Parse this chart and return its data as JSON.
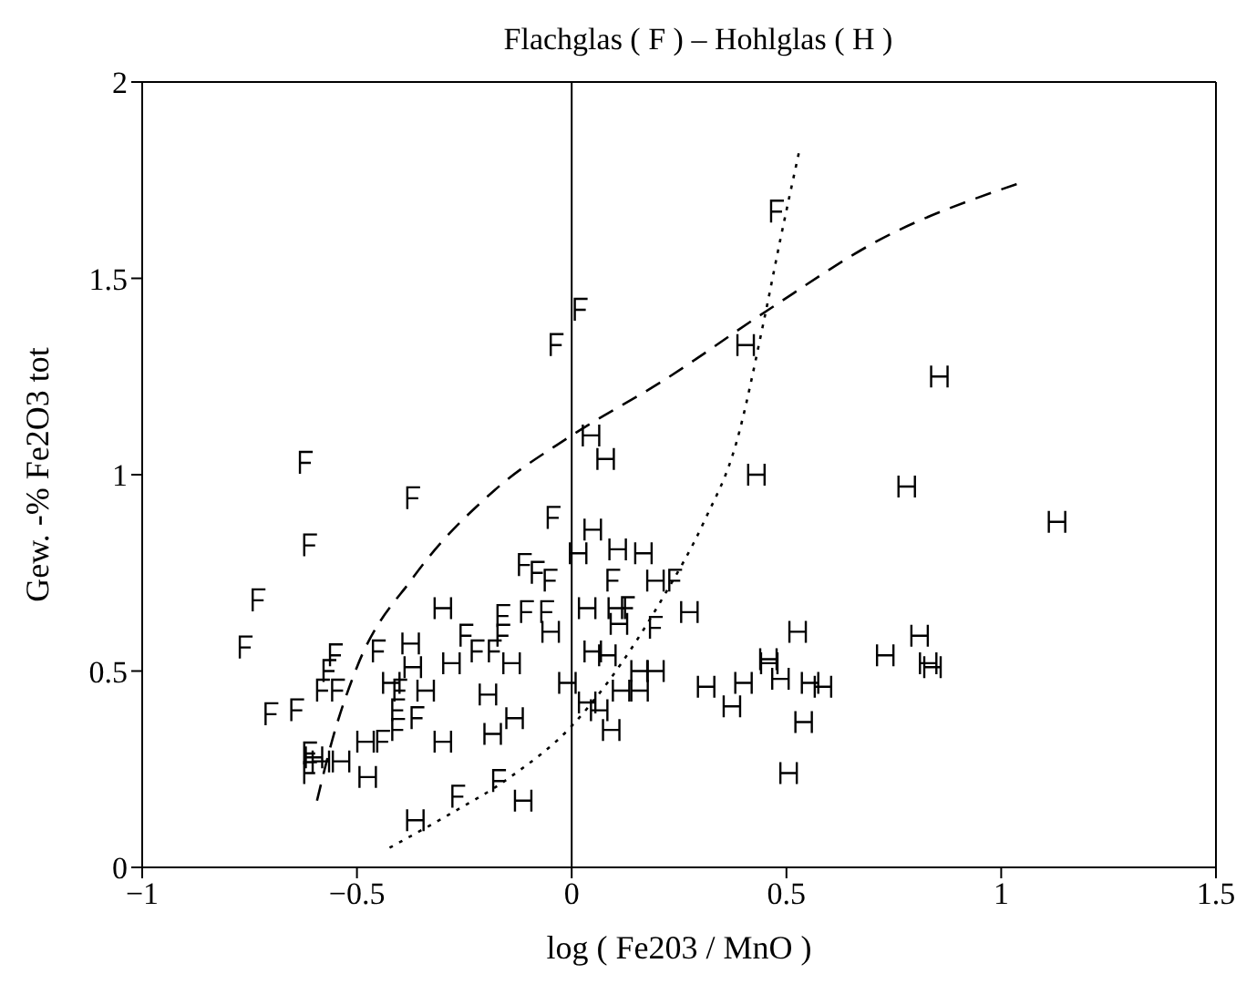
{
  "chart_data": {
    "type": "scatter",
    "title": "Flachglas ( F ) – Hohlglas ( H )",
    "xlabel": "log ( Fe203 / MnO )",
    "ylabel": "Gew. -%  Fe2O3 tot",
    "xlim": [
      -1,
      1.5
    ],
    "xticks": [
      -1,
      -0.5,
      0,
      0.5,
      1,
      1.5
    ],
    "ylim": [
      0,
      2
    ],
    "yticks": [
      0,
      0.5,
      1,
      1.5,
      2
    ],
    "grid": false,
    "legend": false,
    "ref_lines": [
      {
        "axis": "x",
        "value": 0,
        "color": "#000000"
      }
    ],
    "series": [
      {
        "color": "#000000",
        "marker": "cross",
        "x": [
          0.477,
          0.02,
          -0.036,
          -0.62,
          -0.37,
          -0.043,
          -0.61,
          -0.73,
          -0.76,
          -0.11,
          -0.08,
          -0.05,
          0.096,
          0.24,
          -0.16,
          -0.105,
          -0.058,
          0.13,
          0.195,
          -0.246,
          -0.22,
          -0.16,
          -0.45,
          -0.55,
          -0.565,
          -0.58,
          -0.545,
          -0.7,
          -0.64,
          -0.4,
          -0.405,
          -0.36,
          -0.405,
          -0.44,
          -0.18,
          -0.265,
          -0.17,
          -0.61,
          -0.61
        ],
        "values": [
          1.67,
          1.42,
          1.33,
          1.03,
          0.94,
          0.89,
          0.82,
          0.68,
          0.56,
          0.77,
          0.75,
          0.73,
          0.73,
          0.73,
          0.64,
          0.65,
          0.65,
          0.66,
          0.61,
          0.59,
          0.55,
          0.59,
          0.55,
          0.54,
          0.5,
          0.45,
          0.45,
          0.39,
          0.4,
          0.45,
          0.4,
          0.38,
          0.35,
          0.32,
          0.55,
          0.18,
          0.22,
          0.24,
          0.29
        ]
      },
      {
        "color": "#000000",
        "marker": "cross",
        "x": [
          0.405,
          0.856,
          0.045,
          0.079,
          0.43,
          0.78,
          1.13,
          0.049,
          0.015,
          0.107,
          0.167,
          0.195,
          -0.3,
          0.036,
          0.105,
          0.274,
          -0.049,
          0.11,
          0.526,
          -0.375,
          -0.28,
          -0.14,
          0.049,
          0.083,
          0.73,
          0.81,
          0.83,
          0.84,
          0.458,
          0.46,
          0.158,
          0.195,
          -0.42,
          -0.34,
          -0.01,
          0.158,
          0.115,
          0.313,
          0.4,
          0.486,
          0.555,
          0.585,
          -0.195,
          0.036,
          -0.133,
          0.373,
          0.54,
          0.064,
          0.092,
          -0.3,
          -0.184,
          -0.48,
          -0.475,
          -0.537,
          -0.584,
          -0.6,
          0.505,
          -0.113,
          -0.364,
          -0.37
        ],
        "values": [
          1.33,
          1.25,
          1.1,
          1.04,
          1.0,
          0.97,
          0.88,
          0.86,
          0.8,
          0.81,
          0.8,
          0.73,
          0.66,
          0.66,
          0.66,
          0.65,
          0.6,
          0.62,
          0.6,
          0.57,
          0.52,
          0.52,
          0.55,
          0.54,
          0.54,
          0.59,
          0.52,
          0.51,
          0.53,
          0.52,
          0.5,
          0.5,
          0.47,
          0.45,
          0.47,
          0.45,
          0.45,
          0.46,
          0.47,
          0.48,
          0.47,
          0.46,
          0.44,
          0.42,
          0.38,
          0.41,
          0.37,
          0.4,
          0.35,
          0.32,
          0.34,
          0.32,
          0.23,
          0.27,
          0.27,
          0.28,
          0.24,
          0.17,
          0.12,
          0.51
        ]
      },
      {
        "type": "line",
        "color": "#000000",
        "line_style": "dashed",
        "x": [
          -0.593,
          -0.556,
          -0.5,
          -0.368,
          -0.18,
          0,
          0.214,
          0.458,
          0.72,
          1.036
        ],
        "values": [
          0.17,
          0.33,
          0.51,
          0.74,
          0.96,
          1.1,
          1.24,
          1.42,
          1.6,
          1.74
        ]
      },
      {
        "type": "line",
        "color": "#000000",
        "line_style": "dotted",
        "x": [
          -0.424,
          -0.293,
          -0.143,
          0,
          0.083,
          0.214,
          0.308,
          0.383,
          0.449,
          0.486,
          0.529
        ],
        "values": [
          0.05,
          0.13,
          0.23,
          0.36,
          0.47,
          0.69,
          0.88,
          1.08,
          1.4,
          1.6,
          1.82
        ]
      }
    ]
  }
}
